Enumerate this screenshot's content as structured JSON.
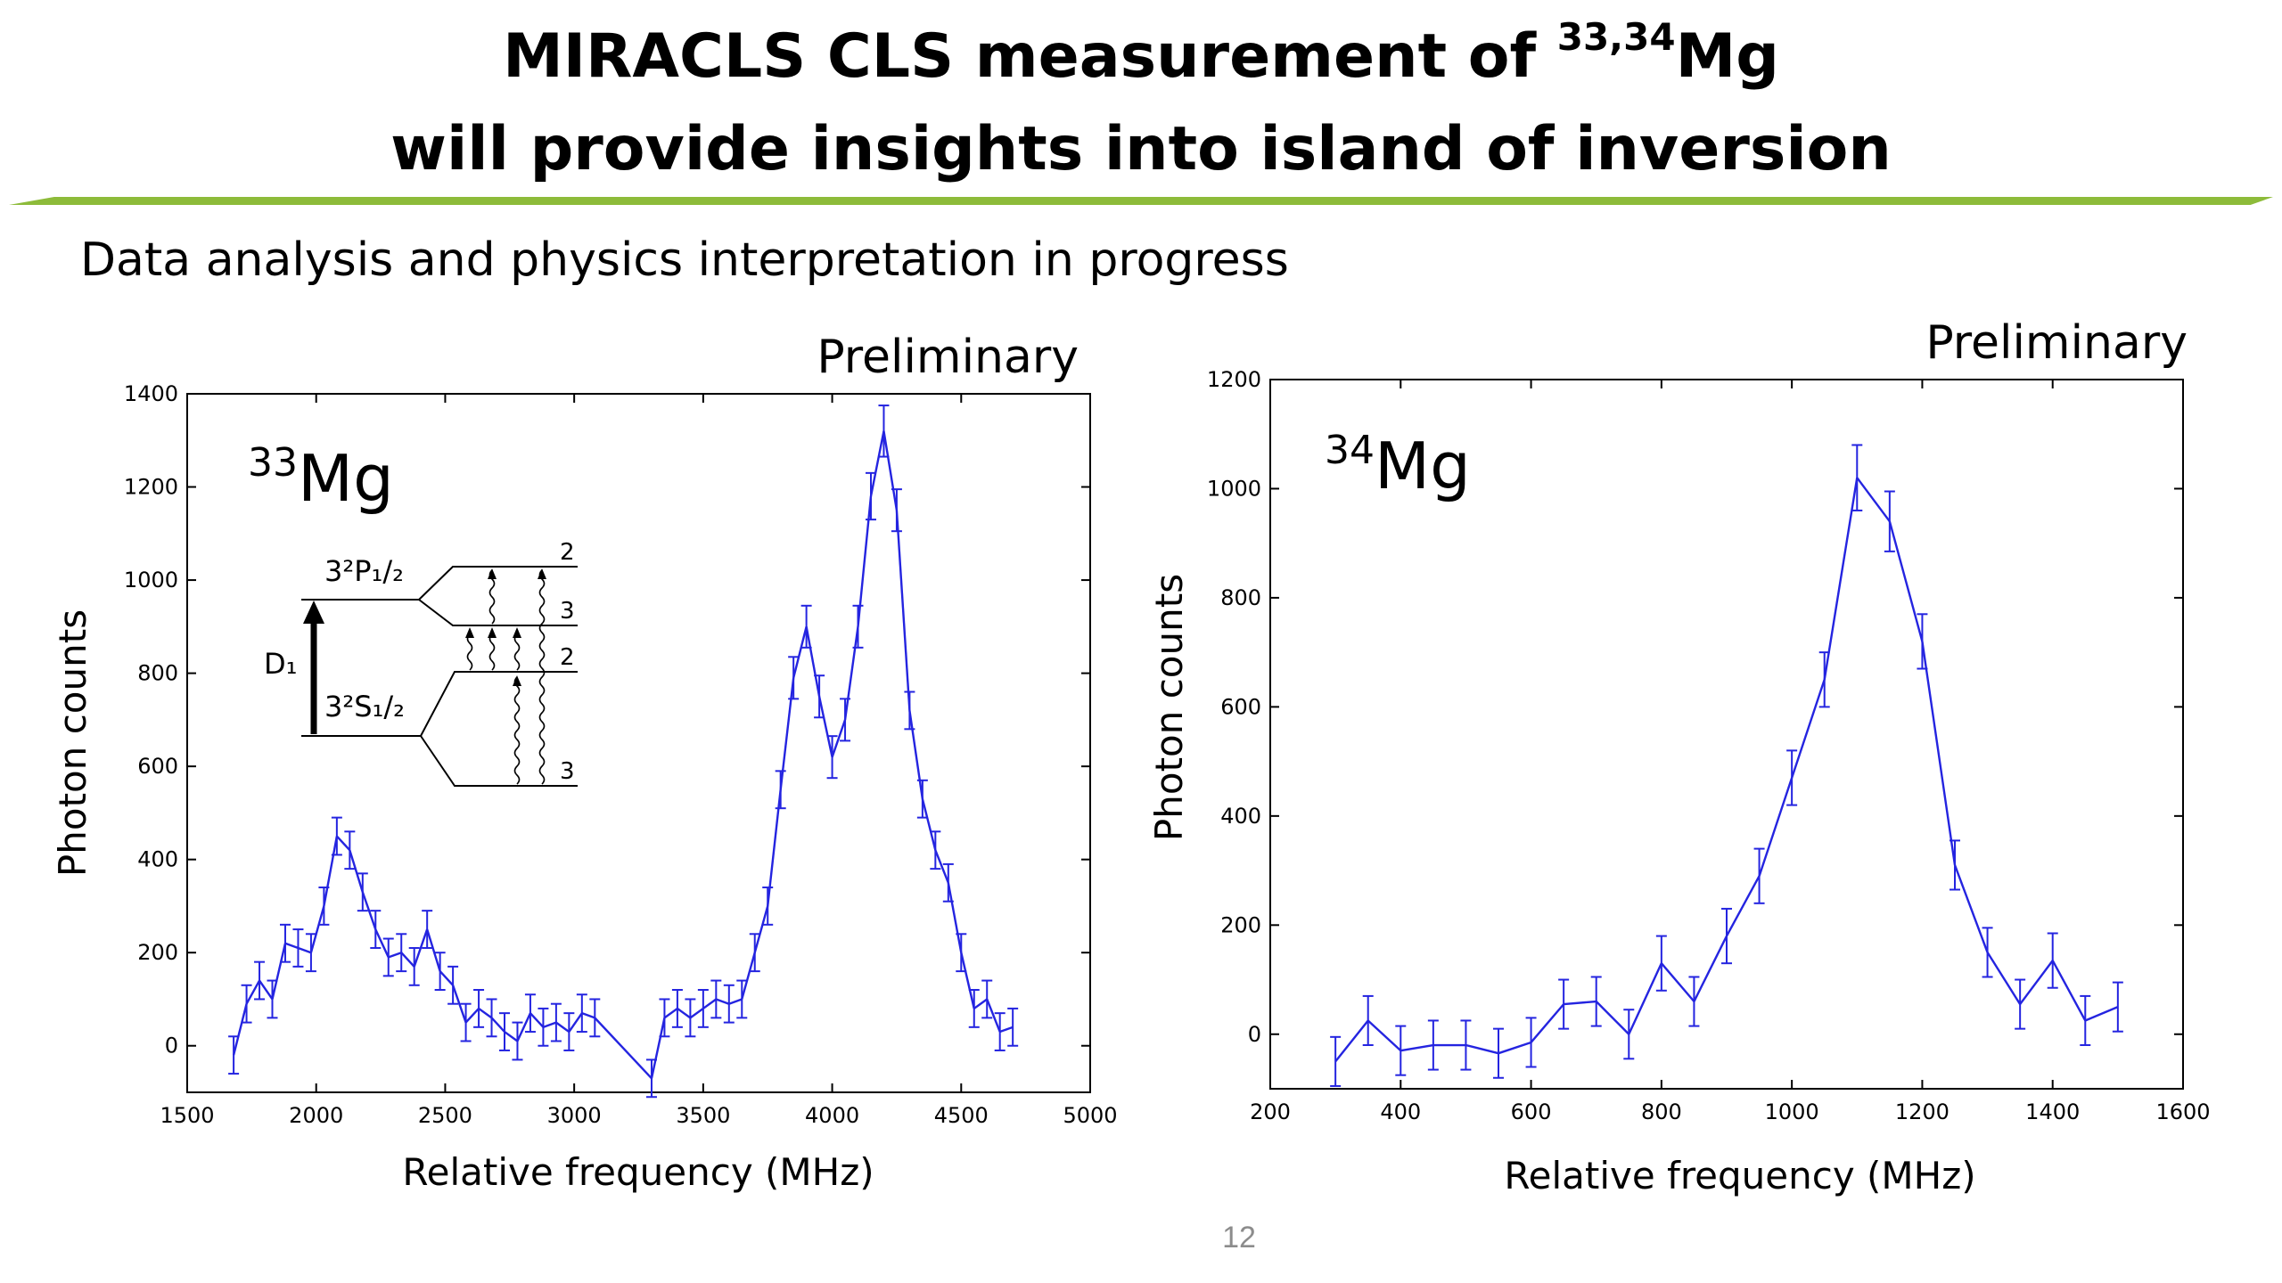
{
  "title": {
    "line1_prefix": "MIRACLS CLS measurement of ",
    "line1_sup": "33,34",
    "line1_suffix": "Mg",
    "line2": "will provide insights into island of inversion"
  },
  "subtitle": "Data analysis and physics interpretation in progress",
  "page_number": "12",
  "colors": {
    "line": "#2424e0",
    "rule": "#8dbb3a"
  },
  "chart_data": [
    {
      "type": "line",
      "preliminary": "Preliminary",
      "isotope_mass": "33",
      "isotope_symbol": "Mg",
      "xlabel": "Relative frequency (MHz)",
      "ylabel": "Photon counts",
      "xlim": [
        1500,
        5000
      ],
      "ylim": [
        -100,
        1400
      ],
      "xticks": [
        1500,
        2000,
        2500,
        3000,
        3500,
        4000,
        4500,
        5000
      ],
      "yticks": [
        0,
        200,
        400,
        600,
        800,
        1000,
        1200,
        1400
      ],
      "x": [
        1680,
        1730,
        1780,
        1830,
        1880,
        1930,
        1980,
        2030,
        2080,
        2130,
        2180,
        2230,
        2280,
        2330,
        2380,
        2430,
        2480,
        2530,
        2580,
        2630,
        2680,
        2730,
        2780,
        2830,
        2880,
        2930,
        2980,
        3030,
        3080,
        3300,
        3350,
        3400,
        3450,
        3500,
        3550,
        3600,
        3650,
        3700,
        3750,
        3800,
        3850,
        3900,
        3950,
        4000,
        4050,
        4100,
        4150,
        4200,
        4250,
        4300,
        4350,
        4400,
        4450,
        4500,
        4550,
        4600,
        4650,
        4700
      ],
      "y": [
        -20,
        90,
        140,
        100,
        220,
        210,
        200,
        300,
        450,
        420,
        330,
        250,
        190,
        200,
        170,
        250,
        160,
        130,
        50,
        80,
        60,
        30,
        10,
        70,
        40,
        50,
        30,
        70,
        60,
        -70,
        60,
        80,
        60,
        80,
        100,
        90,
        100,
        200,
        300,
        550,
        790,
        900,
        750,
        620,
        700,
        900,
        1180,
        1320,
        1150,
        720,
        530,
        420,
        350,
        200,
        80,
        100,
        30,
        40
      ],
      "yerr": [
        40,
        40,
        40,
        40,
        40,
        40,
        40,
        40,
        40,
        40,
        40,
        40,
        40,
        40,
        40,
        40,
        40,
        40,
        40,
        40,
        40,
        40,
        40,
        40,
        40,
        40,
        40,
        40,
        40,
        40,
        40,
        40,
        40,
        40,
        40,
        40,
        40,
        40,
        40,
        40,
        45,
        45,
        45,
        45,
        45,
        45,
        50,
        55,
        45,
        40,
        40,
        40,
        40,
        40,
        40,
        40,
        40,
        40
      ],
      "inset": {
        "upper_level": "3²P₁/₂",
        "lower_level": "3²S₁/₂",
        "transition": "D₁",
        "f_labels": [
          "2",
          "3",
          "2",
          "3"
        ]
      }
    },
    {
      "type": "line",
      "preliminary": "Preliminary",
      "isotope_mass": "34",
      "isotope_symbol": "Mg",
      "xlabel": "Relative frequency (MHz)",
      "ylabel": "Photon counts",
      "xlim": [
        200,
        1600
      ],
      "ylim": [
        -100,
        1200
      ],
      "xticks": [
        200,
        400,
        600,
        800,
        1000,
        1200,
        1400,
        1600
      ],
      "yticks": [
        0,
        200,
        400,
        600,
        800,
        1000,
        1200
      ],
      "x": [
        300,
        350,
        400,
        450,
        500,
        550,
        600,
        650,
        700,
        750,
        800,
        850,
        900,
        950,
        1000,
        1050,
        1100,
        1150,
        1200,
        1250,
        1300,
        1350,
        1400,
        1450,
        1500
      ],
      "y": [
        -50,
        25,
        -30,
        -20,
        -20,
        -35,
        -15,
        55,
        60,
        0,
        130,
        60,
        180,
        290,
        470,
        650,
        1020,
        940,
        720,
        310,
        150,
        55,
        135,
        25,
        50
      ],
      "yerr": [
        45,
        45,
        45,
        45,
        45,
        45,
        45,
        45,
        45,
        45,
        50,
        45,
        50,
        50,
        50,
        50,
        60,
        55,
        50,
        45,
        45,
        45,
        50,
        45,
        45
      ]
    }
  ]
}
